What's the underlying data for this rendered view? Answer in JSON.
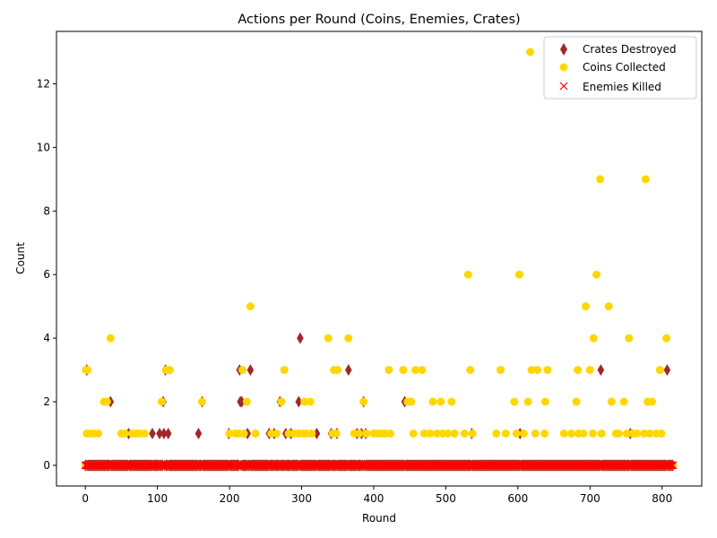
{
  "chart_data": {
    "type": "scatter",
    "title": "Actions per Round (Coins, Enemies, Crates)",
    "xlabel": "Round",
    "ylabel": "Count",
    "xlim": [
      -40,
      855
    ],
    "ylim": [
      -0.65,
      13.65
    ],
    "x_ticks": [
      0,
      100,
      200,
      300,
      400,
      500,
      600,
      700,
      800
    ],
    "y_ticks": [
      0,
      2,
      4,
      6,
      8,
      10,
      12
    ],
    "grid": false,
    "legend_position": "upper right",
    "rounds": {
      "start": 0,
      "end": 815
    },
    "series": [
      {
        "name": "Crates Destroyed",
        "marker": "diamond",
        "color": "#a0282a",
        "points": [
          [
            2,
            3
          ],
          [
            35,
            2
          ],
          [
            60,
            1
          ],
          [
            93,
            1
          ],
          [
            103,
            1
          ],
          [
            108,
            2
          ],
          [
            109,
            1
          ],
          [
            111,
            3
          ],
          [
            115,
            1
          ],
          [
            157,
            1
          ],
          [
            162,
            2
          ],
          [
            199,
            1
          ],
          [
            214,
            3
          ],
          [
            215,
            2
          ],
          [
            217,
            2
          ],
          [
            225,
            1
          ],
          [
            229,
            3
          ],
          [
            255,
            1
          ],
          [
            262,
            1
          ],
          [
            270,
            2
          ],
          [
            278,
            1
          ],
          [
            285,
            1
          ],
          [
            296,
            2
          ],
          [
            298,
            4
          ],
          [
            321,
            1
          ],
          [
            341,
            1
          ],
          [
            349,
            1
          ],
          [
            365,
            3
          ],
          [
            377,
            1
          ],
          [
            383,
            1
          ],
          [
            386,
            2
          ],
          [
            389,
            1
          ],
          [
            443,
            2
          ],
          [
            536,
            1
          ],
          [
            603,
            1
          ],
          [
            715,
            3
          ],
          [
            756,
            1
          ],
          [
            807,
            3
          ]
        ],
        "zeros": "all other rounds"
      },
      {
        "name": "Coins Collected",
        "marker": "circle",
        "color": "#ffd700",
        "points": [
          [
            1,
            3
          ],
          [
            2,
            1
          ],
          [
            3,
            3
          ],
          [
            8,
            1
          ],
          [
            12,
            1
          ],
          [
            18,
            1
          ],
          [
            26,
            2
          ],
          [
            30,
            2
          ],
          [
            35,
            4
          ],
          [
            50,
            1
          ],
          [
            55,
            1
          ],
          [
            65,
            1
          ],
          [
            70,
            1
          ],
          [
            75,
            1
          ],
          [
            82,
            1
          ],
          [
            106,
            2
          ],
          [
            112,
            3
          ],
          [
            117,
            3
          ],
          [
            162,
            2
          ],
          [
            200,
            1
          ],
          [
            208,
            1
          ],
          [
            213,
            1
          ],
          [
            218,
            3
          ],
          [
            220,
            1
          ],
          [
            224,
            2
          ],
          [
            229,
            5
          ],
          [
            236,
            1
          ],
          [
            258,
            1
          ],
          [
            265,
            1
          ],
          [
            272,
            2
          ],
          [
            276,
            3
          ],
          [
            282,
            1
          ],
          [
            290,
            1
          ],
          [
            296,
            1
          ],
          [
            302,
            1
          ],
          [
            304,
            2
          ],
          [
            307,
            1
          ],
          [
            312,
            2
          ],
          [
            314,
            1
          ],
          [
            337,
            4
          ],
          [
            343,
            1
          ],
          [
            345,
            3
          ],
          [
            348,
            1
          ],
          [
            350,
            3
          ],
          [
            365,
            4
          ],
          [
            373,
            1
          ],
          [
            380,
            1
          ],
          [
            386,
            2
          ],
          [
            390,
            1
          ],
          [
            400,
            1
          ],
          [
            405,
            1
          ],
          [
            411,
            1
          ],
          [
            416,
            1
          ],
          [
            421,
            3
          ],
          [
            423,
            1
          ],
          [
            441,
            3
          ],
          [
            447,
            2
          ],
          [
            452,
            2
          ],
          [
            455,
            1
          ],
          [
            458,
            3
          ],
          [
            467,
            3
          ],
          [
            470,
            1
          ],
          [
            478,
            1
          ],
          [
            482,
            2
          ],
          [
            488,
            1
          ],
          [
            493,
            2
          ],
          [
            496,
            1
          ],
          [
            503,
            1
          ],
          [
            508,
            2
          ],
          [
            512,
            1
          ],
          [
            526,
            1
          ],
          [
            531,
            6
          ],
          [
            534,
            3
          ],
          [
            537,
            1
          ],
          [
            570,
            1
          ],
          [
            576,
            3
          ],
          [
            583,
            1
          ],
          [
            595,
            2
          ],
          [
            598,
            1
          ],
          [
            602,
            6
          ],
          [
            608,
            1
          ],
          [
            614,
            2
          ],
          [
            617,
            13
          ],
          [
            619,
            3
          ],
          [
            624,
            1
          ],
          [
            627,
            3
          ],
          [
            637,
            1
          ],
          [
            638,
            2
          ],
          [
            641,
            3
          ],
          [
            664,
            1
          ],
          [
            674,
            1
          ],
          [
            681,
            2
          ],
          [
            683,
            3
          ],
          [
            684,
            1
          ],
          [
            691,
            1
          ],
          [
            694,
            5
          ],
          [
            700,
            3
          ],
          [
            704,
            1
          ],
          [
            705,
            4
          ],
          [
            709,
            6
          ],
          [
            714,
            9
          ],
          [
            716,
            1
          ],
          [
            726,
            5
          ],
          [
            730,
            2
          ],
          [
            736,
            1
          ],
          [
            740,
            1
          ],
          [
            747,
            2
          ],
          [
            751,
            1
          ],
          [
            754,
            4
          ],
          [
            759,
            1
          ],
          [
            765,
            1
          ],
          [
            775,
            1
          ],
          [
            777,
            9
          ],
          [
            780,
            2
          ],
          [
            783,
            1
          ],
          [
            786,
            2
          ],
          [
            792,
            1
          ],
          [
            797,
            3
          ],
          [
            799,
            1
          ],
          [
            806,
            4
          ]
        ],
        "zeros": "all other rounds"
      },
      {
        "name": "Enemies Killed",
        "marker": "x",
        "color": "#ff0000",
        "points": [],
        "zeros": "all rounds"
      }
    ]
  }
}
